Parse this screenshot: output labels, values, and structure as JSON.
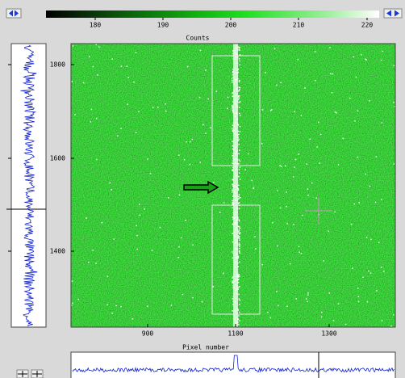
{
  "colorbar": {
    "ticks": [
      "180",
      "190",
      "200",
      "210",
      "220"
    ]
  },
  "image": {
    "title": "Counts",
    "yticks": [
      "1800",
      "1600",
      "1400"
    ],
    "xticks": [
      "900",
      "1100",
      "1300"
    ],
    "xlabel": "Pixel number"
  }
}
